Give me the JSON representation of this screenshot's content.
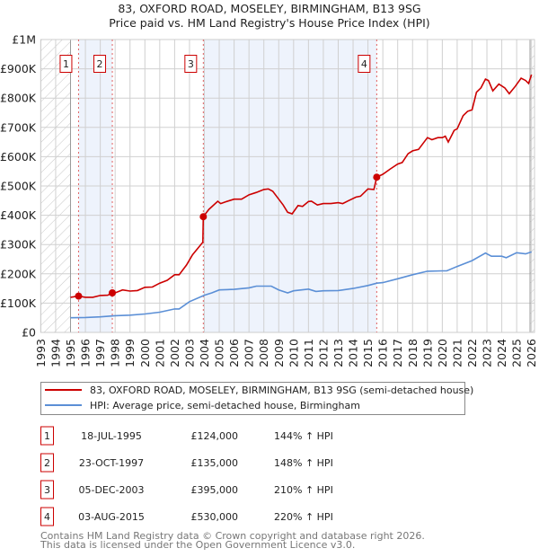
{
  "chart_data": {
    "type": "line",
    "title": "83, OXFORD ROAD, MOSELEY, BIRMINGHAM, B13 9SG",
    "subtitle": "Price paid vs. HM Land Registry's House Price Index (HPI)",
    "xlabel": "",
    "ylabel": "",
    "xlim": [
      1993,
      2026.2
    ],
    "ylim": [
      0,
      1000000
    ],
    "x_ticks": [
      1993,
      1994,
      1995,
      1996,
      1997,
      1998,
      1999,
      2000,
      2001,
      2002,
      2003,
      2004,
      2005,
      2006,
      2007,
      2008,
      2009,
      2010,
      2011,
      2012,
      2013,
      2014,
      2015,
      2016,
      2017,
      2018,
      2019,
      2020,
      2021,
      2022,
      2023,
      2024,
      2025,
      2026
    ],
    "y_ticks": [
      {
        "value": 0,
        "label": "£0"
      },
      {
        "value": 100000,
        "label": "£100K"
      },
      {
        "value": 200000,
        "label": "£200K"
      },
      {
        "value": 300000,
        "label": "£300K"
      },
      {
        "value": 400000,
        "label": "£400K"
      },
      {
        "value": 500000,
        "label": "£500K"
      },
      {
        "value": 600000,
        "label": "£600K"
      },
      {
        "value": 700000,
        "label": "£700K"
      },
      {
        "value": 800000,
        "label": "£800K"
      },
      {
        "value": 900000,
        "label": "£900K"
      },
      {
        "value": 1000000,
        "label": "£1M"
      }
    ],
    "grid": true,
    "legend_placement": "below",
    "colors": {
      "property": "#cc0000",
      "hpi": "#5b8fd6",
      "shade": "#eef3fc"
    },
    "series": [
      {
        "name": "83, OXFORD ROAD, MOSELEY, BIRMINGHAM, B13 9SG (semi-detached house)",
        "x": [
          1995.0,
          1995.54,
          1996,
          1996.5,
          1997,
          1997.5,
          1997.81,
          1998,
          1998.5,
          1999,
          1999.5,
          2000,
          2000.5,
          2001,
          2001.5,
          2002,
          2002.3,
          2002.8,
          2003.2,
          2003.9,
          2003.93,
          2004.3,
          2004.9,
          2005.1,
          2005.5,
          2006,
          2006.5,
          2007,
          2007.5,
          2008,
          2008.3,
          2008.6,
          2009,
          2009.3,
          2009.6,
          2009.9,
          2010.3,
          2010.6,
          2011,
          2011.2,
          2011.6,
          2012,
          2012.5,
          2013,
          2013.3,
          2013.7,
          2014.2,
          2014.5,
          2015,
          2015.4,
          2015.59,
          2016,
          2016.5,
          2017,
          2017.3,
          2017.7,
          2018,
          2018.4,
          2019,
          2019.3,
          2019.7,
          2020,
          2020.2,
          2020.4,
          2020.8,
          2021,
          2021.4,
          2021.7,
          2022,
          2022.3,
          2022.6,
          2022.9,
          2023.1,
          2023.4,
          2023.8,
          2024.2,
          2024.5,
          2024.9,
          2025.3,
          2025.6,
          2025.8,
          2026.0
        ],
        "values": [
          120000,
          124000,
          120000,
          120000,
          126000,
          127000,
          135000,
          135000,
          145000,
          141000,
          143000,
          154000,
          155000,
          168000,
          178000,
          197000,
          197000,
          230000,
          265000,
          308000,
          395000,
          420000,
          448000,
          440000,
          447000,
          455000,
          455000,
          470000,
          478000,
          488000,
          490000,
          482000,
          455000,
          435000,
          410000,
          405000,
          433000,
          430000,
          447000,
          448000,
          435000,
          440000,
          440000,
          443000,
          440000,
          450000,
          462000,
          465000,
          490000,
          488000,
          530000,
          540000,
          558000,
          575000,
          580000,
          610000,
          620000,
          625000,
          665000,
          658000,
          665000,
          665000,
          670000,
          650000,
          690000,
          695000,
          740000,
          755000,
          760000,
          820000,
          835000,
          865000,
          860000,
          825000,
          848000,
          835000,
          815000,
          840000,
          868000,
          860000,
          850000,
          880000
        ]
      },
      {
        "name": "HPI: Average price, semi-detached house, Birmingham",
        "x": [
          1995,
          1996,
          1997,
          1998,
          1999,
          2000,
          2001,
          2002,
          2002.3,
          2003,
          2004,
          2004.5,
          2005,
          2006,
          2007,
          2007.5,
          2008.5,
          2009,
          2009.6,
          2010,
          2011,
          2011.5,
          2012,
          2013,
          2014,
          2015,
          2015.6,
          2016,
          2017,
          2018,
          2019,
          2020,
          2020.3,
          2021,
          2022,
          2022.9,
          2023.3,
          2024,
          2024.3,
          2025,
          2025.6,
          2026
        ],
        "values": [
          50000,
          51000,
          53000,
          57000,
          59000,
          63000,
          69000,
          80000,
          80000,
          105000,
          127000,
          135000,
          145000,
          147000,
          152000,
          158000,
          158000,
          145000,
          135000,
          142000,
          148000,
          140000,
          142000,
          143000,
          150000,
          160000,
          168000,
          170000,
          183000,
          197000,
          209000,
          210000,
          210000,
          225000,
          245000,
          271000,
          260000,
          260000,
          255000,
          272000,
          268000,
          275000
        ]
      }
    ],
    "sales": [
      {
        "id": "1",
        "x": 1995.54,
        "value": 124000,
        "date": "18-JUL-1995",
        "price": "£124,000",
        "hpi": "144% ↑ HPI"
      },
      {
        "id": "2",
        "x": 1997.81,
        "value": 135000,
        "date": "23-OCT-1997",
        "price": "£135,000",
        "hpi": "148% ↑ HPI"
      },
      {
        "id": "3",
        "x": 2003.93,
        "value": 395000,
        "date": "05-DEC-2003",
        "price": "£395,000",
        "hpi": "210% ↑ HPI"
      },
      {
        "id": "4",
        "x": 2015.59,
        "value": 530000,
        "date": "03-AUG-2015",
        "price": "£530,000",
        "hpi": "220% ↑ HPI"
      }
    ],
    "shaded_ranges": [
      [
        1995.54,
        1997.81
      ],
      [
        2003.93,
        2015.59
      ]
    ],
    "hatched_ranges": [
      [
        1993,
        1995
      ],
      [
        2025.9,
        2026.2
      ]
    ]
  },
  "header": {
    "title": "83, OXFORD ROAD, MOSELEY, BIRMINGHAM, B13 9SG",
    "subtitle": "Price paid vs. HM Land Registry's House Price Index (HPI)"
  },
  "legend": {
    "property": "83, OXFORD ROAD, MOSELEY, BIRMINGHAM, B13 9SG (semi-detached house)",
    "hpi": "HPI: Average price, semi-detached house, Birmingham"
  },
  "footer": {
    "line1": "Contains HM Land Registry data © Crown copyright and database right 2026.",
    "line2": "This data is licensed under the Open Government Licence v3.0."
  }
}
